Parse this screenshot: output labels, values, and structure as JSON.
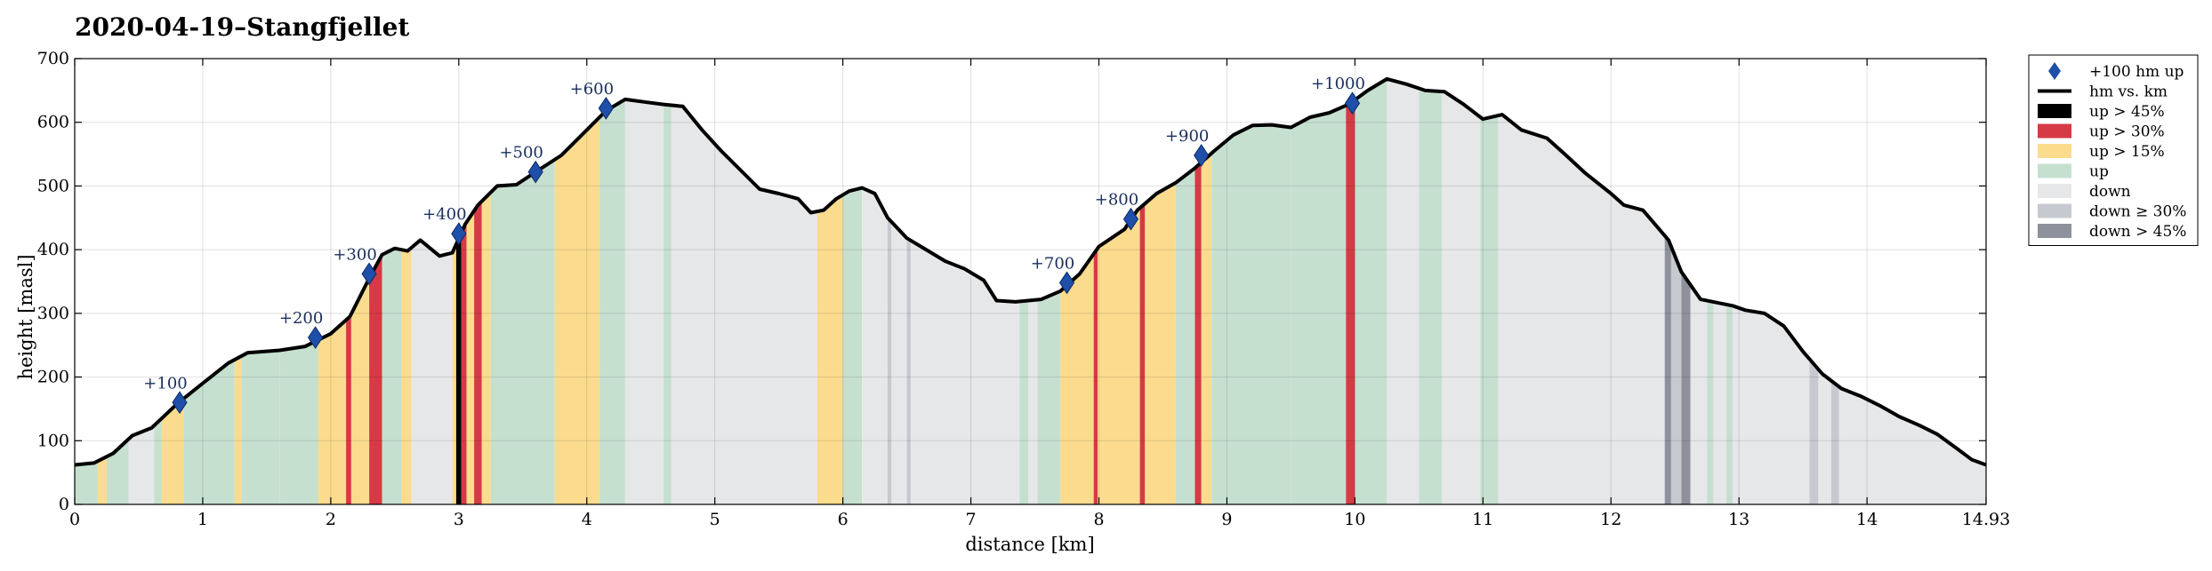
{
  "chart_data": {
    "type": "area",
    "title": "2020-04-19–Stangfjellet",
    "xlabel": "distance [km]",
    "ylabel": "height [masl]",
    "xlim": [
      0,
      14.93
    ],
    "ylim": [
      0,
      700
    ],
    "x_ticks": [
      "0",
      "1",
      "2",
      "3",
      "4",
      "5",
      "6",
      "7",
      "8",
      "9",
      "10",
      "11",
      "12",
      "13",
      "14",
      "14.93"
    ],
    "y_ticks": [
      "0",
      "100",
      "200",
      "300",
      "400",
      "500",
      "600",
      "700"
    ],
    "grid": true,
    "legend_position": "outside-right",
    "colors": {
      "line": "#000000",
      "marker": "#1f4fa8",
      "up45": "#000000",
      "up30": "#d63a45",
      "up15": "#fbdc8e",
      "up": "#c6e0d0",
      "down": "#e6e7e9",
      "down30": "#c7c9d0",
      "down45": "#8e919c"
    },
    "legend": [
      {
        "key": "marker",
        "label": "+100 hm up"
      },
      {
        "key": "line",
        "label": "hm vs. km"
      },
      {
        "key": "up45",
        "label": "up > 45%"
      },
      {
        "key": "up30",
        "label": "up > 30%"
      },
      {
        "key": "up15",
        "label": "up > 15%"
      },
      {
        "key": "up",
        "label": "up"
      },
      {
        "key": "down",
        "label": "down"
      },
      {
        "key": "down30",
        "label": "down ≥ 30%"
      },
      {
        "key": "down45",
        "label": "down > 45%"
      }
    ],
    "profile": [
      [
        0,
        62
      ],
      [
        0.15,
        65
      ],
      [
        0.3,
        80
      ],
      [
        0.45,
        108
      ],
      [
        0.6,
        120
      ],
      [
        0.8,
        158
      ],
      [
        1.0,
        190
      ],
      [
        1.2,
        222
      ],
      [
        1.35,
        238
      ],
      [
        1.6,
        242
      ],
      [
        1.8,
        248
      ],
      [
        2.0,
        268
      ],
      [
        2.15,
        295
      ],
      [
        2.3,
        355
      ],
      [
        2.4,
        392
      ],
      [
        2.5,
        402
      ],
      [
        2.6,
        398
      ],
      [
        2.7,
        415
      ],
      [
        2.85,
        390
      ],
      [
        2.95,
        395
      ],
      [
        3.05,
        440
      ],
      [
        3.15,
        470
      ],
      [
        3.3,
        500
      ],
      [
        3.45,
        502
      ],
      [
        3.6,
        522
      ],
      [
        3.8,
        548
      ],
      [
        4.0,
        588
      ],
      [
        4.15,
        618
      ],
      [
        4.3,
        636
      ],
      [
        4.45,
        632
      ],
      [
        4.6,
        628
      ],
      [
        4.75,
        625
      ],
      [
        4.9,
        588
      ],
      [
        5.05,
        555
      ],
      [
        5.2,
        525
      ],
      [
        5.35,
        495
      ],
      [
        5.5,
        488
      ],
      [
        5.65,
        480
      ],
      [
        5.75,
        458
      ],
      [
        5.85,
        462
      ],
      [
        5.95,
        480
      ],
      [
        6.05,
        492
      ],
      [
        6.15,
        497
      ],
      [
        6.25,
        488
      ],
      [
        6.35,
        450
      ],
      [
        6.5,
        418
      ],
      [
        6.65,
        400
      ],
      [
        6.8,
        382
      ],
      [
        6.95,
        370
      ],
      [
        7.1,
        352
      ],
      [
        7.2,
        320
      ],
      [
        7.35,
        318
      ],
      [
        7.55,
        322
      ],
      [
        7.7,
        335
      ],
      [
        7.85,
        362
      ],
      [
        8.0,
        405
      ],
      [
        8.2,
        432
      ],
      [
        8.3,
        462
      ],
      [
        8.45,
        488
      ],
      [
        8.6,
        505
      ],
      [
        8.75,
        528
      ],
      [
        8.9,
        555
      ],
      [
        9.05,
        580
      ],
      [
        9.2,
        595
      ],
      [
        9.35,
        596
      ],
      [
        9.5,
        592
      ],
      [
        9.65,
        608
      ],
      [
        9.8,
        615
      ],
      [
        9.95,
        628
      ],
      [
        10.1,
        650
      ],
      [
        10.25,
        668
      ],
      [
        10.4,
        660
      ],
      [
        10.55,
        650
      ],
      [
        10.7,
        648
      ],
      [
        10.85,
        628
      ],
      [
        11.0,
        605
      ],
      [
        11.15,
        612
      ],
      [
        11.3,
        588
      ],
      [
        11.5,
        575
      ],
      [
        11.65,
        548
      ],
      [
        11.8,
        520
      ],
      [
        12.0,
        488
      ],
      [
        12.1,
        470
      ],
      [
        12.25,
        462
      ],
      [
        12.45,
        415
      ],
      [
        12.55,
        365
      ],
      [
        12.7,
        322
      ],
      [
        12.85,
        316
      ],
      [
        12.95,
        312
      ],
      [
        13.05,
        305
      ],
      [
        13.2,
        300
      ],
      [
        13.35,
        280
      ],
      [
        13.5,
        240
      ],
      [
        13.65,
        205
      ],
      [
        13.8,
        182
      ],
      [
        13.95,
        170
      ],
      [
        14.1,
        155
      ],
      [
        14.25,
        138
      ],
      [
        14.4,
        125
      ],
      [
        14.55,
        110
      ],
      [
        14.7,
        88
      ],
      [
        14.82,
        70
      ],
      [
        14.93,
        62
      ]
    ],
    "segments": [
      [
        0.0,
        0.18,
        "up"
      ],
      [
        0.18,
        0.25,
        "up15"
      ],
      [
        0.25,
        0.42,
        "up"
      ],
      [
        0.42,
        0.62,
        "down"
      ],
      [
        0.62,
        0.68,
        "up"
      ],
      [
        0.68,
        0.85,
        "up15"
      ],
      [
        0.85,
        1.25,
        "up"
      ],
      [
        1.25,
        1.3,
        "up15"
      ],
      [
        1.3,
        1.6,
        "up"
      ],
      [
        1.6,
        1.9,
        "up"
      ],
      [
        1.9,
        2.12,
        "up15"
      ],
      [
        2.12,
        2.16,
        "up30"
      ],
      [
        2.16,
        2.3,
        "up15"
      ],
      [
        2.3,
        2.4,
        "up30"
      ],
      [
        2.4,
        2.55,
        "up"
      ],
      [
        2.55,
        2.63,
        "up15"
      ],
      [
        2.63,
        2.95,
        "down"
      ],
      [
        2.95,
        2.98,
        "up15"
      ],
      [
        2.98,
        3.02,
        "up45"
      ],
      [
        3.02,
        3.06,
        "up30"
      ],
      [
        3.06,
        3.12,
        "up15"
      ],
      [
        3.12,
        3.18,
        "up30"
      ],
      [
        3.18,
        3.25,
        "up15"
      ],
      [
        3.25,
        3.38,
        "up"
      ],
      [
        3.38,
        3.75,
        "up"
      ],
      [
        3.75,
        4.1,
        "up15"
      ],
      [
        4.1,
        4.3,
        "up"
      ],
      [
        4.3,
        4.6,
        "down"
      ],
      [
        4.6,
        4.66,
        "up"
      ],
      [
        4.66,
        5.8,
        "down"
      ],
      [
        5.8,
        6.0,
        "up15"
      ],
      [
        6.0,
        6.15,
        "up"
      ],
      [
        6.15,
        6.35,
        "down"
      ],
      [
        6.35,
        6.38,
        "down30"
      ],
      [
        6.38,
        6.5,
        "down"
      ],
      [
        6.5,
        6.53,
        "down30"
      ],
      [
        6.53,
        7.38,
        "down"
      ],
      [
        7.38,
        7.45,
        "up"
      ],
      [
        7.45,
        7.52,
        "down"
      ],
      [
        7.52,
        7.7,
        "up"
      ],
      [
        7.7,
        7.96,
        "up15"
      ],
      [
        7.96,
        7.99,
        "up30"
      ],
      [
        7.99,
        8.32,
        "up15"
      ],
      [
        8.32,
        8.36,
        "up30"
      ],
      [
        8.36,
        8.6,
        "up15"
      ],
      [
        8.6,
        8.75,
        "up"
      ],
      [
        8.75,
        8.8,
        "up30"
      ],
      [
        8.8,
        8.88,
        "up15"
      ],
      [
        8.88,
        9.5,
        "up"
      ],
      [
        9.5,
        9.93,
        "up"
      ],
      [
        9.93,
        10.0,
        "up30"
      ],
      [
        10.0,
        10.25,
        "up"
      ],
      [
        10.25,
        10.5,
        "down"
      ],
      [
        10.5,
        10.68,
        "up"
      ],
      [
        10.68,
        10.98,
        "down"
      ],
      [
        10.98,
        11.12,
        "up"
      ],
      [
        11.12,
        12.42,
        "down"
      ],
      [
        12.42,
        12.47,
        "down45"
      ],
      [
        12.47,
        12.55,
        "down30"
      ],
      [
        12.55,
        12.62,
        "down45"
      ],
      [
        12.62,
        12.75,
        "down"
      ],
      [
        12.75,
        12.8,
        "up"
      ],
      [
        12.8,
        12.9,
        "down"
      ],
      [
        12.9,
        12.95,
        "up"
      ],
      [
        12.95,
        13.55,
        "down"
      ],
      [
        13.55,
        13.62,
        "down30"
      ],
      [
        13.62,
        13.72,
        "down"
      ],
      [
        13.72,
        13.78,
        "down30"
      ],
      [
        13.78,
        14.93,
        "down"
      ]
    ],
    "markers": [
      {
        "x": 0.82,
        "y": 160,
        "label": "+100"
      },
      {
        "x": 1.88,
        "y": 262,
        "label": "+200"
      },
      {
        "x": 2.3,
        "y": 362,
        "label": "+300"
      },
      {
        "x": 3.0,
        "y": 425,
        "label": "+400"
      },
      {
        "x": 3.6,
        "y": 522,
        "label": "+500"
      },
      {
        "x": 4.15,
        "y": 622,
        "label": "+600"
      },
      {
        "x": 7.75,
        "y": 348,
        "label": "+700"
      },
      {
        "x": 8.25,
        "y": 448,
        "label": "+800"
      },
      {
        "x": 8.8,
        "y": 548,
        "label": "+900"
      },
      {
        "x": 9.98,
        "y": 630,
        "label": "+1000"
      }
    ]
  }
}
